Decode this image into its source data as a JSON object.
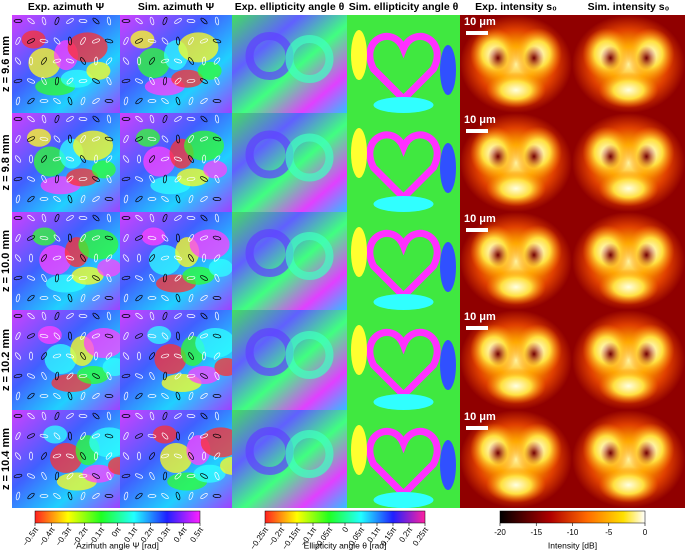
{
  "columns": [
    "Exp. azimuth Ψ",
    "Sim. azimuth Ψ",
    "Exp. ellipticity angle θ",
    "Sim. ellipticity angle θ",
    "Exp. intensity s₀",
    "Sim. intensity s₀"
  ],
  "rows": [
    "z = 9.6 mm",
    "z = 9.8 mm",
    "z = 10.0 mm",
    "z = 10.2 mm",
    "z = 10.4 mm"
  ],
  "scale_bar": "10 μm",
  "colorbars": [
    {
      "ticks": [
        "−0.5π",
        "−0.4π",
        "−0.3π",
        "−0.2π",
        "−0.1π",
        "0π",
        "0.1π",
        "0.2π",
        "0.3π",
        "0.4π",
        "0.5π"
      ],
      "label": "Azimuth angle Ψ [rad]"
    },
    {
      "ticks": [
        "−0.25π",
        "−0.2π",
        "−0.15π",
        "−0.1π",
        "−0.05π",
        "0",
        "0.05π",
        "0.1π",
        "0.15π",
        "0.2π",
        "0.25π"
      ],
      "label": "Ellipticity angle θ [rad]"
    },
    {
      "ticks": [
        "-20",
        "-15",
        "-10",
        "-5",
        "0"
      ],
      "label": "Intensity [dB]"
    }
  ]
}
